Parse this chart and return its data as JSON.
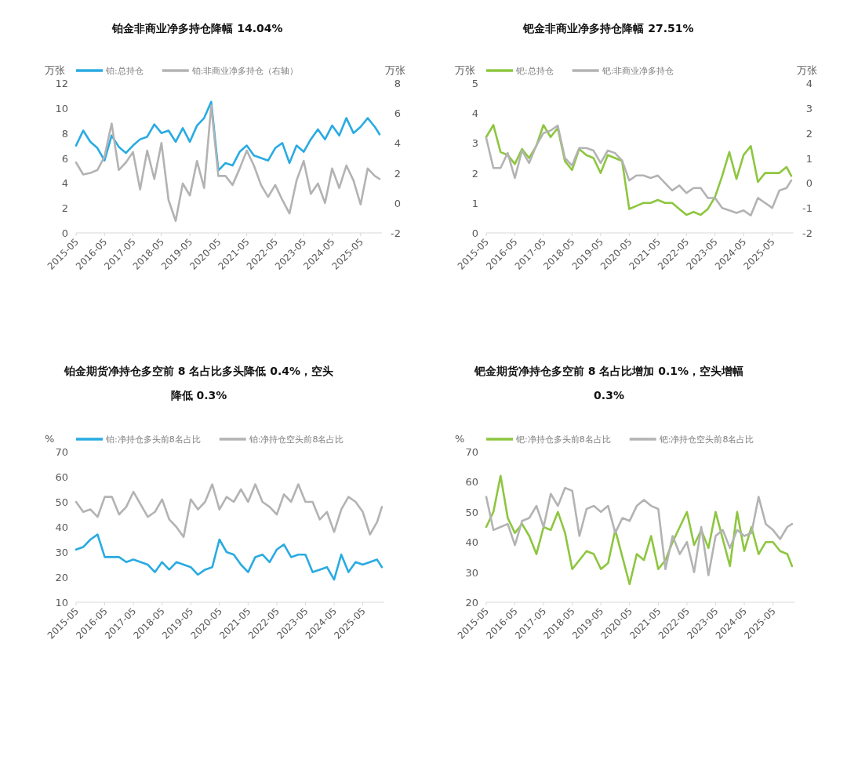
{
  "chart_data": [
    {
      "type": "line",
      "title": "铂金非商业净多持仓降幅 14.04%",
      "ylabel": "万张",
      "y2label": "万张",
      "x": [
        "2015-05",
        "2015-08",
        "2015-11",
        "2016-02",
        "2016-05",
        "2016-08",
        "2016-11",
        "2017-02",
        "2017-05",
        "2017-08",
        "2017-11",
        "2018-02",
        "2018-05",
        "2018-08",
        "2018-11",
        "2019-02",
        "2019-05",
        "2019-08",
        "2019-11",
        "2020-02",
        "2020-05",
        "2020-08",
        "2020-11",
        "2021-02",
        "2021-05",
        "2021-08",
        "2021-11",
        "2022-02",
        "2022-05",
        "2022-08",
        "2022-11",
        "2023-02",
        "2023-05",
        "2023-08",
        "2023-11",
        "2024-02",
        "2024-05",
        "2024-08",
        "2024-11",
        "2025-02",
        "2025-05",
        "2025-08",
        "2025-11",
        "2026-01"
      ],
      "series": [
        {
          "name": "铂:总持仓",
          "color": "#29abe2",
          "values": [
            7.0,
            8.2,
            7.3,
            6.8,
            5.8,
            7.8,
            6.9,
            6.4,
            7.0,
            7.5,
            7.7,
            8.7,
            8.0,
            8.2,
            7.3,
            8.4,
            7.3,
            8.6,
            9.2,
            10.5,
            5.0,
            5.6,
            5.4,
            6.5,
            7.0,
            6.2,
            6.0,
            5.8,
            6.8,
            7.2,
            5.6,
            7.0,
            6.5,
            7.5,
            8.3,
            7.5,
            8.6,
            7.8,
            9.2,
            8.0,
            8.5,
            9.2,
            8.5,
            7.9
          ]
        },
        {
          "name": "铂:非商业净多持仓（右轴）",
          "color": "#b3b3b3",
          "axis": "y2",
          "values": [
            2.7,
            1.9,
            2.0,
            2.2,
            3.1,
            5.3,
            2.2,
            2.7,
            3.4,
            0.9,
            3.5,
            1.6,
            4.0,
            0.2,
            -1.2,
            1.3,
            0.5,
            2.8,
            1.0,
            6.5,
            1.8,
            1.8,
            1.2,
            2.3,
            3.5,
            2.5,
            1.2,
            0.4,
            1.2,
            0.2,
            -0.7,
            1.5,
            2.8,
            0.6,
            1.3,
            0.0,
            2.3,
            1.0,
            2.5,
            1.5,
            -0.1,
            2.3,
            1.8,
            1.6
          ]
        }
      ],
      "xlim": [
        "2015-05",
        "2026-02"
      ],
      "xticks": [
        "2015-05",
        "2016-05",
        "2017-05",
        "2018-05",
        "2019-05",
        "2020-05",
        "2021-05",
        "2022-05",
        "2023-05",
        "2024-05",
        "2025-05"
      ],
      "ylim": [
        0,
        12
      ],
      "yticks": [
        0,
        2,
        4,
        6,
        8,
        10,
        12
      ],
      "y2lim": [
        -2,
        8
      ],
      "y2ticks": [
        -2,
        0,
        2,
        4,
        6,
        8
      ],
      "legend": "top",
      "marker": "none",
      "line_style": "solid"
    },
    {
      "type": "line",
      "title": "钯金非商业净多持仓降幅 27.51%",
      "ylabel": "万张",
      "y2label": "万张",
      "x": [
        "2015-05",
        "2015-08",
        "2015-11",
        "2016-02",
        "2016-05",
        "2016-08",
        "2016-11",
        "2017-02",
        "2017-05",
        "2017-08",
        "2017-11",
        "2018-02",
        "2018-05",
        "2018-08",
        "2018-11",
        "2019-02",
        "2019-05",
        "2019-08",
        "2019-11",
        "2020-02",
        "2020-05",
        "2020-08",
        "2020-11",
        "2021-02",
        "2021-05",
        "2021-08",
        "2021-11",
        "2022-02",
        "2022-05",
        "2022-08",
        "2022-11",
        "2023-02",
        "2023-05",
        "2023-08",
        "2023-11",
        "2024-02",
        "2024-05",
        "2024-08",
        "2024-11",
        "2025-02",
        "2025-05",
        "2025-08",
        "2025-11",
        "2026-01"
      ],
      "series": [
        {
          "name": "钯:总持仓",
          "color": "#8dc63f",
          "values": [
            3.2,
            3.6,
            2.7,
            2.6,
            2.3,
            2.8,
            2.5,
            2.9,
            3.6,
            3.2,
            3.5,
            2.4,
            2.1,
            2.8,
            2.6,
            2.5,
            2.0,
            2.6,
            2.5,
            2.4,
            0.8,
            0.9,
            1.0,
            1.0,
            1.1,
            1.0,
            1.0,
            0.8,
            0.6,
            0.7,
            0.6,
            0.8,
            1.2,
            1.9,
            2.7,
            1.8,
            2.6,
            2.9,
            1.7,
            2.0,
            2.0,
            2.0,
            2.2,
            1.9
          ]
        },
        {
          "name": "钯:非商业净多持仓",
          "color": "#b3b3b3",
          "axis": "y2",
          "values": [
            1.8,
            0.6,
            0.6,
            1.2,
            0.2,
            1.3,
            0.8,
            1.5,
            2.0,
            2.1,
            2.3,
            1.0,
            0.7,
            1.4,
            1.4,
            1.3,
            0.8,
            1.3,
            1.2,
            0.9,
            0.1,
            0.3,
            0.3,
            0.2,
            0.3,
            0.0,
            -0.3,
            -0.1,
            -0.4,
            -0.2,
            -0.2,
            -0.6,
            -0.6,
            -1.0,
            -1.1,
            -1.2,
            -1.1,
            -1.3,
            -0.6,
            -0.8,
            -1.0,
            -0.3,
            -0.2,
            0.1
          ]
        }
      ],
      "xlim": [
        "2015-05",
        "2026-02"
      ],
      "xticks": [
        "2015-05",
        "2016-05",
        "2017-05",
        "2018-05",
        "2019-05",
        "2020-05",
        "2021-05",
        "2022-05",
        "2023-05",
        "2024-05",
        "2025-05"
      ],
      "ylim": [
        0,
        5
      ],
      "yticks": [
        0,
        1,
        2,
        3,
        4,
        5
      ],
      "y2lim": [
        -2,
        4
      ],
      "y2ticks": [
        -2,
        -1,
        0,
        1,
        2,
        3,
        4
      ],
      "legend": "top",
      "marker": "none",
      "line_style": "solid"
    },
    {
      "type": "line",
      "title": "铂金期货净持仓多空前 8 名占比多头降低 0.4%，空头降低 0.3%",
      "ylabel": "%",
      "x": [
        "2015-05",
        "2015-08",
        "2015-11",
        "2016-02",
        "2016-05",
        "2016-08",
        "2016-11",
        "2017-02",
        "2017-05",
        "2017-08",
        "2017-11",
        "2018-02",
        "2018-05",
        "2018-08",
        "2018-11",
        "2019-02",
        "2019-05",
        "2019-08",
        "2019-11",
        "2020-02",
        "2020-05",
        "2020-08",
        "2020-11",
        "2021-02",
        "2021-05",
        "2021-08",
        "2021-11",
        "2022-02",
        "2022-05",
        "2022-08",
        "2022-11",
        "2023-02",
        "2023-05",
        "2023-08",
        "2023-11",
        "2024-02",
        "2024-05",
        "2024-08",
        "2024-11",
        "2025-02",
        "2025-05",
        "2025-08",
        "2025-11",
        "2026-01"
      ],
      "series": [
        {
          "name": "铂:净持仓多头前8名占比",
          "color": "#29abe2",
          "values": [
            31,
            32,
            35,
            37,
            28,
            28,
            28,
            26,
            27,
            26,
            25,
            22,
            26,
            23,
            26,
            25,
            24,
            21,
            23,
            24,
            35,
            30,
            29,
            25,
            22,
            28,
            29,
            26,
            31,
            33,
            28,
            29,
            29,
            22,
            23,
            24,
            19,
            29,
            22,
            26,
            25,
            26,
            27,
            24
          ]
        },
        {
          "name": "铂:净持仓空头前8名占比",
          "color": "#b3b3b3",
          "values": [
            50,
            46,
            47,
            44,
            52,
            52,
            45,
            48,
            54,
            49,
            44,
            46,
            51,
            43,
            40,
            36,
            51,
            47,
            50,
            57,
            47,
            52,
            50,
            55,
            50,
            57,
            50,
            48,
            45,
            53,
            50,
            57,
            50,
            50,
            43,
            46,
            38,
            47,
            52,
            50,
            46,
            37,
            42,
            48
          ]
        }
      ],
      "xlim": [
        "2015-05",
        "2026-02"
      ],
      "xticks": [
        "2015-05",
        "2016-05",
        "2017-05",
        "2018-05",
        "2019-05",
        "2020-05",
        "2021-05",
        "2022-05",
        "2023-05",
        "2024-05",
        "2025-05"
      ],
      "ylim": [
        10,
        70
      ],
      "yticks": [
        10,
        20,
        30,
        40,
        50,
        60,
        70
      ],
      "legend": "top",
      "marker": "none",
      "line_style": "solid"
    },
    {
      "type": "line",
      "title": "钯金期货净持仓多空前 8 名占比增加 0.1%，空头增幅 0.3%",
      "ylabel": "%",
      "x": [
        "2015-05",
        "2015-08",
        "2015-11",
        "2016-02",
        "2016-05",
        "2016-08",
        "2016-11",
        "2017-02",
        "2017-05",
        "2017-08",
        "2017-11",
        "2018-02",
        "2018-05",
        "2018-08",
        "2018-11",
        "2019-02",
        "2019-05",
        "2019-08",
        "2019-11",
        "2020-02",
        "2020-05",
        "2020-08",
        "2020-11",
        "2021-02",
        "2021-05",
        "2021-08",
        "2021-11",
        "2022-02",
        "2022-05",
        "2022-08",
        "2022-11",
        "2023-02",
        "2023-05",
        "2023-08",
        "2023-11",
        "2024-02",
        "2024-05",
        "2024-08",
        "2024-11",
        "2025-02",
        "2025-05",
        "2025-08",
        "2025-11",
        "2026-01"
      ],
      "series": [
        {
          "name": "钯:净持仓多头前8名占比",
          "color": "#8dc63f",
          "values": [
            45,
            50,
            62,
            48,
            43,
            46,
            42,
            36,
            45,
            44,
            50,
            43,
            31,
            34,
            37,
            36,
            31,
            33,
            44,
            35,
            26,
            36,
            34,
            42,
            31,
            34,
            40,
            45,
            50,
            39,
            44,
            38,
            50,
            41,
            32,
            50,
            37,
            45,
            36,
            40,
            40,
            37,
            36,
            32
          ]
        },
        {
          "name": "钯:净持仓空头前8名占比",
          "color": "#b3b3b3",
          "values": [
            55,
            44,
            45,
            46,
            39,
            47,
            48,
            52,
            45,
            56,
            52,
            58,
            57,
            42,
            51,
            52,
            50,
            52,
            43,
            48,
            47,
            52,
            54,
            52,
            51,
            31,
            42,
            36,
            40,
            30,
            45,
            29,
            42,
            44,
            38,
            44,
            42,
            43,
            55,
            46,
            44,
            41,
            45,
            46
          ]
        }
      ],
      "xlim": [
        "2015-05",
        "2026-02"
      ],
      "xticks": [
        "2015-05",
        "2016-05",
        "2017-05",
        "2018-05",
        "2019-05",
        "2020-05",
        "2021-05",
        "2022-05",
        "2023-05",
        "2024-05",
        "2025-05"
      ],
      "ylim": [
        20,
        70
      ],
      "yticks": [
        20,
        30,
        40,
        50,
        60,
        70
      ],
      "legend": "top",
      "marker": "none",
      "line_style": "solid"
    }
  ]
}
